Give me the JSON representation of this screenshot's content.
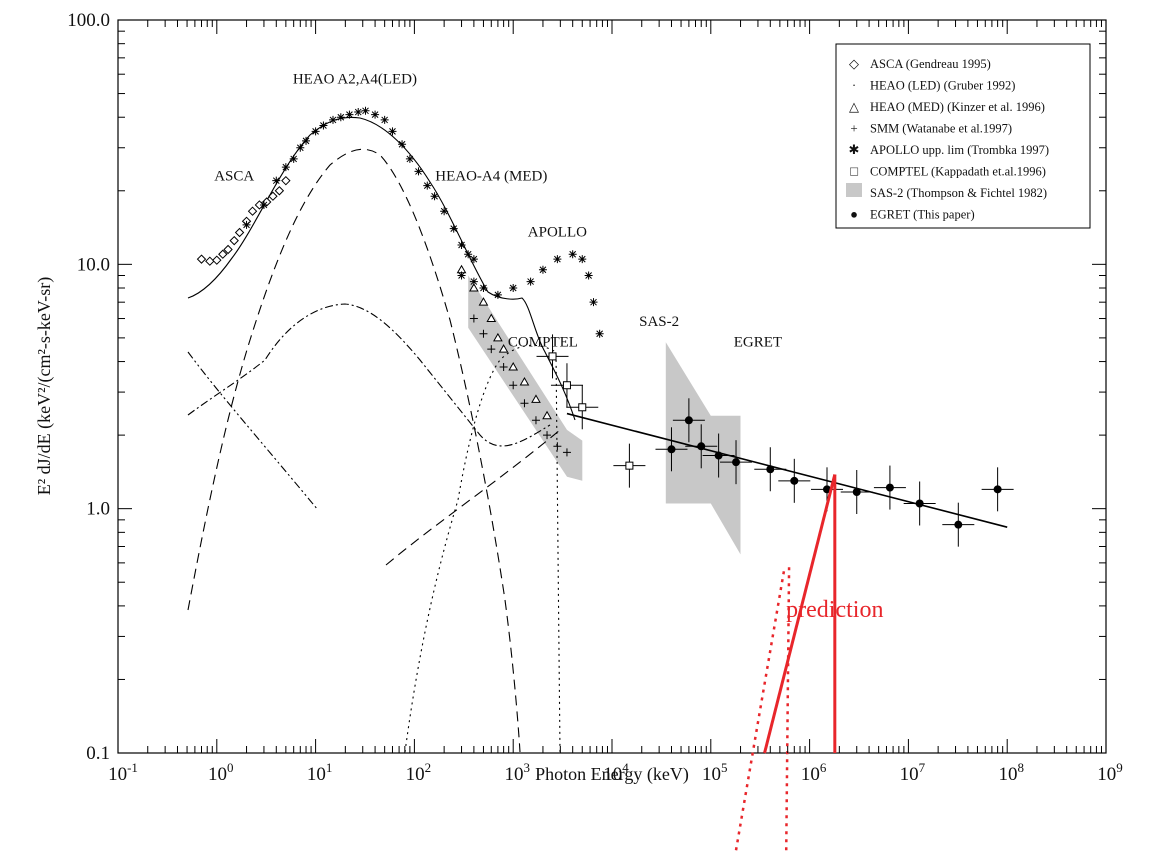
{
  "chart_data": {
    "type": "scatter",
    "xscale": "log",
    "yscale": "log",
    "xlim": [
      0.1,
      1000000000
    ],
    "ylim": [
      0.1,
      100
    ],
    "xlabel": "Photon Energy (keV)",
    "ylabel": "E² dJ/dE (keV²/(cm²-s-keV-sr)",
    "y_tick_labels": [
      "100.0",
      "10.0",
      "1.0",
      "0.1"
    ],
    "y_tick_values": [
      100,
      10,
      1,
      0.1
    ],
    "x_tick_base": "10",
    "x_tick_exponents": [
      "-1",
      "0",
      "1",
      "2",
      "3",
      "4",
      "5",
      "6",
      "7",
      "8",
      "9"
    ],
    "legend": [
      {
        "symbol": "◇",
        "label": "ASCA (Gendreau 1995)"
      },
      {
        "symbol": "·",
        "label": "HEAO (LED) (Gruber 1992)"
      },
      {
        "symbol": "△",
        "label": "HEAO (MED) (Kinzer et al. 1996)"
      },
      {
        "symbol": "+",
        "label": "SMM (Watanabe et al.1997)"
      },
      {
        "symbol": "✱",
        "label": "APOLLO upp. lim (Trombka 1997)"
      },
      {
        "symbol": "□",
        "label": "COMPTEL (Kappadath et.al.1996)"
      },
      {
        "symbol": "■",
        "label": "SAS-2 (Thompson & Fichtel 1982)"
      },
      {
        "symbol": "●",
        "label": "EGRET (This paper)"
      }
    ],
    "annotations": [
      {
        "text": "HEAO A2,A4(LED)",
        "x": 25,
        "y": 55
      },
      {
        "text": "ASCA",
        "x": 1.5,
        "y": 22
      },
      {
        "text": "HEAO-A4 (MED)",
        "x": 600,
        "y": 22
      },
      {
        "text": "APOLLO",
        "x": 2800,
        "y": 13
      },
      {
        "text": "SAS-2",
        "x": 30000,
        "y": 5.6
      },
      {
        "text": "COMPTEL",
        "x": 2000,
        "y": 4.6
      },
      {
        "text": "EGRET",
        "x": 300000,
        "y": 4.6
      },
      {
        "text": "prediction",
        "x": 1800000,
        "y": 0.36,
        "color": "#e8262b"
      }
    ],
    "series": [
      {
        "name": "ASCA",
        "marker": "diamond",
        "points": [
          [
            0.7,
            10.5
          ],
          [
            0.85,
            10.3
          ],
          [
            1.0,
            10.4
          ],
          [
            1.15,
            11.0
          ],
          [
            1.3,
            11.5
          ],
          [
            1.5,
            12.5
          ],
          [
            1.7,
            13.5
          ],
          [
            2.0,
            15.0
          ],
          [
            2.3,
            16.5
          ],
          [
            2.7,
            17.5
          ],
          [
            3.2,
            18.0
          ],
          [
            3.7,
            19.0
          ],
          [
            4.3,
            20.0
          ],
          [
            5.0,
            22.0
          ]
        ]
      },
      {
        "name": "HEAO A2,A4 (LED)",
        "marker": "star",
        "points": [
          [
            2.0,
            14.5
          ],
          [
            3.0,
            17.5
          ],
          [
            4.0,
            22.0
          ],
          [
            5.0,
            25.0
          ],
          [
            6.0,
            27.0
          ],
          [
            7.0,
            30.0
          ],
          [
            8.0,
            32.0
          ],
          [
            10,
            35.0
          ],
          [
            12,
            37.0
          ],
          [
            15,
            39.0
          ],
          [
            18,
            40.0
          ],
          [
            22,
            41.0
          ],
          [
            27,
            42.0
          ],
          [
            32,
            42.5
          ],
          [
            40,
            41.0
          ],
          [
            50,
            39.0
          ],
          [
            60,
            35.0
          ],
          [
            75,
            31.0
          ],
          [
            90,
            27.0
          ],
          [
            110,
            24.0
          ],
          [
            135,
            21.0
          ],
          [
            160,
            19.0
          ],
          [
            200,
            16.5
          ],
          [
            250,
            14.0
          ],
          [
            300,
            12.0
          ],
          [
            350,
            11.0
          ],
          [
            400,
            10.5
          ]
        ]
      },
      {
        "name": "HEAO-A4 (MED)",
        "marker": "triangle",
        "points": [
          [
            300,
            9.5
          ],
          [
            400,
            8.0
          ],
          [
            500,
            7.0
          ],
          [
            600,
            6.0
          ],
          [
            700,
            5.0
          ],
          [
            800,
            4.5
          ],
          [
            1000,
            3.8
          ],
          [
            1300,
            3.3
          ],
          [
            1700,
            2.8
          ],
          [
            2200,
            2.4
          ]
        ]
      },
      {
        "name": "SMM",
        "marker": "plus",
        "points": [
          [
            400,
            6.0
          ],
          [
            500,
            5.2
          ],
          [
            600,
            4.5
          ],
          [
            800,
            3.8
          ],
          [
            1000,
            3.2
          ],
          [
            1300,
            2.7
          ],
          [
            1700,
            2.3
          ],
          [
            2200,
            2.0
          ],
          [
            2800,
            1.8
          ],
          [
            3500,
            1.7
          ]
        ]
      },
      {
        "name": "APOLLO upp. lim",
        "marker": "star",
        "points": [
          [
            300,
            9.0
          ],
          [
            400,
            8.5
          ],
          [
            500,
            8.0
          ],
          [
            700,
            7.5
          ],
          [
            1000,
            8.0
          ],
          [
            1500,
            8.5
          ],
          [
            2000,
            9.5
          ],
          [
            2800,
            10.5
          ],
          [
            4000,
            11.0
          ],
          [
            5000,
            10.5
          ],
          [
            5800,
            9.0
          ],
          [
            6500,
            7.0
          ],
          [
            7500,
            5.2
          ]
        ]
      },
      {
        "name": "COMPTEL",
        "marker": "square",
        "points": [
          [
            2500,
            4.2
          ],
          [
            3500,
            3.2
          ],
          [
            5000,
            2.6
          ],
          [
            15000,
            1.5
          ]
        ]
      },
      {
        "name": "EGRET",
        "marker": "circle",
        "points": [
          [
            40000,
            1.75
          ],
          [
            60000,
            2.3
          ],
          [
            80000,
            1.8
          ],
          [
            120000,
            1.65
          ],
          [
            180000,
            1.55
          ],
          [
            400000,
            1.45
          ],
          [
            700000,
            1.3
          ],
          [
            1500000,
            1.2
          ],
          [
            3000000,
            1.17
          ],
          [
            6500000,
            1.22
          ],
          [
            13000000,
            1.05
          ],
          [
            32000000,
            0.86
          ],
          [
            80000000,
            1.2
          ]
        ]
      },
      {
        "name": "EGRET power-law fit",
        "marker": "line",
        "points": [
          [
            3500,
            2.45
          ],
          [
            100000000,
            0.84
          ]
        ]
      }
    ],
    "bands": [
      {
        "name": "SAS-2",
        "points": [
          [
            35000,
            1.05
          ],
          [
            35000,
            4.8
          ],
          [
            100000,
            2.4
          ],
          [
            200000,
            2.4
          ],
          [
            200000,
            0.65
          ],
          [
            100000,
            1.05
          ]
        ]
      },
      {
        "name": "SMM",
        "points": [
          [
            350,
            9.0
          ],
          [
            3500,
            2.1
          ],
          [
            5000,
            1.9
          ],
          [
            5000,
            1.3
          ],
          [
            3500,
            1.35
          ],
          [
            350,
            5.5
          ]
        ]
      }
    ],
    "prediction_lines": [
      {
        "style": "solid",
        "color": "#e8262b",
        "points": [
          [
            1800000,
            0.1
          ],
          [
            1800000,
            1.38
          ]
        ]
      },
      {
        "style": "solid",
        "color": "#e8262b",
        "points": [
          [
            350000,
            0.1
          ],
          [
            1800000,
            1.38
          ]
        ]
      },
      {
        "style": "dotted",
        "color": "#e8262b",
        "points": [
          [
            180000,
            0.04
          ],
          [
            560000,
            0.58
          ]
        ]
      },
      {
        "style": "dotted",
        "color": "#e8262b",
        "points": [
          [
            580000,
            0.04
          ],
          [
            620000,
            0.58
          ]
        ]
      }
    ]
  }
}
